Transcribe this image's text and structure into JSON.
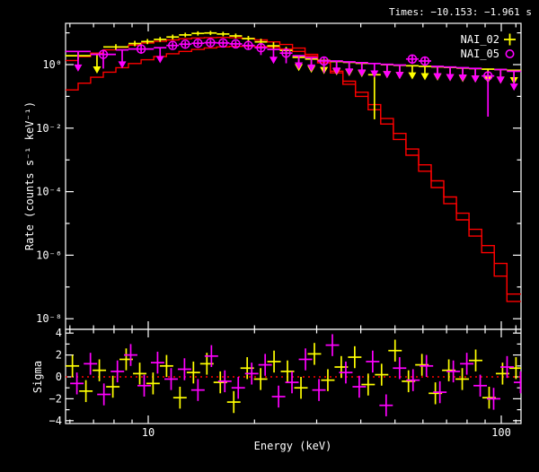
{
  "header": {
    "times": "Times: −10.153: −1.961 s"
  },
  "axis": {
    "xlabel": "Energy (keV)",
    "ylabel_main": "Rate (counts s⁻¹ keV⁻¹)",
    "ylabel_resid": "Sigma",
    "x_major_labels": [
      "10",
      "100"
    ],
    "y_major_labels_main": [
      "10⁰",
      "10⁻²",
      "10⁻⁴",
      "10⁻⁶",
      "10⁻⁸"
    ],
    "y_major_labels_resid": [
      "4",
      "2",
      "0",
      "−2",
      "−4"
    ]
  },
  "colors": {
    "background": "#000000",
    "frame": "#ffffff",
    "model": "#ff0000",
    "zero_line": "#ff0000",
    "nai02": "#ffff00",
    "nai05": "#ff00ff"
  },
  "chart_data": {
    "type": "scatter",
    "title": "Times: −10.153: −1.961 s",
    "xlabel": "Energy (keV)",
    "ylabel": "Rate (counts s⁻¹ keV⁻¹)",
    "ylabel_residuals": "Sigma",
    "x_scale": "log",
    "y_scale_main": "log",
    "x_range_kev": [
      5.83,
      113.8
    ],
    "y_range_main": [
      5e-09,
      20
    ],
    "y_range_residuals": [
      -4.3,
      4.35
    ],
    "x_major_ticks": [
      10,
      100
    ],
    "x_minor_ticks": [
      6,
      7,
      8,
      9,
      20,
      30,
      40,
      50,
      60,
      70,
      80,
      90,
      110
    ],
    "y_major_ticks_main": [
      1,
      0.01,
      0.0001,
      1e-06,
      1e-08
    ],
    "y_minor_ticks_main": [
      10,
      0.1,
      0.001,
      1e-05,
      1e-07
    ],
    "y_major_ticks_resid": [
      4,
      2,
      0,
      -2,
      -4
    ],
    "y_minor_ticks_resid": [
      3,
      1,
      -1,
      -3
    ],
    "legend_position": "top-right",
    "model_bin_edges_kev": [
      5.83,
      6.33,
      6.87,
      7.46,
      8.1,
      8.79,
      9.55,
      10.37,
      11.26,
      12.22,
      13.27,
      14.41,
      15.64,
      16.98,
      18.44,
      20.02,
      21.73,
      23.59,
      25.62,
      27.81,
      30.2,
      32.79,
      35.6,
      38.65,
      41.97,
      45.56,
      49.47,
      53.71,
      58.32,
      63.32,
      68.75,
      74.65,
      81.05,
      88.0,
      95.55,
      103.74,
      113.8
    ],
    "series": [
      {
        "name": "NAI_02",
        "color": "#ffff00",
        "marker": "plus",
        "model_rate": [
          1.35,
          1.8,
          2.3,
          2.9,
          3.5,
          4.1,
          4.8,
          5.4,
          6.0,
          6.5,
          6.9,
          7.1,
          7.2,
          7.0,
          6.6,
          6.0,
          5.2,
          4.3,
          3.3,
          2.1,
          1.15,
          0.55,
          0.24,
          0.1,
          0.038,
          0.0135,
          0.0044,
          0.0014,
          0.00044,
          0.000135,
          4.2e-05,
          1.3e-05,
          4e-06,
          1.2e-06,
          2.2e-07,
          3.5e-08
        ],
        "points": [
          {
            "e0": 5.83,
            "e1": 6.87,
            "r": 1.9,
            "lo": 1.45,
            "hi": 2.5
          },
          {
            "e0": 7.46,
            "e1": 8.79,
            "r": 3.6,
            "lo": 2.9,
            "hi": 4.4
          },
          {
            "e0": 8.79,
            "e1": 9.55,
            "r": 4.6,
            "lo": 3.8,
            "hi": 5.6
          },
          {
            "e0": 9.55,
            "e1": 10.37,
            "r": 5.3,
            "lo": 4.4,
            "hi": 6.4
          },
          {
            "e0": 10.37,
            "e1": 11.26,
            "r": 6.2,
            "lo": 5.2,
            "hi": 7.4
          },
          {
            "e0": 11.26,
            "e1": 12.22,
            "r": 7.4,
            "lo": 6.2,
            "hi": 8.8
          },
          {
            "e0": 12.22,
            "e1": 13.27,
            "r": 8.6,
            "lo": 7.3,
            "hi": 10.1
          },
          {
            "e0": 13.27,
            "e1": 14.41,
            "r": 9.6,
            "lo": 8.2,
            "hi": 11.2
          },
          {
            "e0": 14.41,
            "e1": 15.64,
            "r": 9.9,
            "lo": 8.5,
            "hi": 11.5
          },
          {
            "e0": 15.64,
            "e1": 16.98,
            "r": 9.2,
            "lo": 7.8,
            "hi": 10.8
          },
          {
            "e0": 16.98,
            "e1": 18.44,
            "r": 8.0,
            "lo": 6.7,
            "hi": 9.5
          },
          {
            "e0": 18.44,
            "e1": 20.02,
            "r": 6.6,
            "lo": 5.4,
            "hi": 8.0
          },
          {
            "e0": 20.02,
            "e1": 21.73,
            "r": 5.2,
            "lo": 4.1,
            "hi": 6.5
          },
          {
            "e0": 21.73,
            "e1": 23.59,
            "r": 3.9,
            "lo": 2.9,
            "hi": 5.1
          },
          {
            "e0": 23.59,
            "e1": 25.62,
            "r": 2.8,
            "lo": 1.55,
            "hi": 3.6
          },
          {
            "e0": 41.97,
            "e1": 45.56,
            "r": 0.48,
            "lo": 0.019,
            "hi": 0.62
          }
        ],
        "upper_limits": [
          {
            "e0": 6.87,
            "e1": 7.46,
            "top": 2.1,
            "tip": 0.52
          },
          {
            "e0": 25.62,
            "e1": 27.81,
            "top": 1.7,
            "tip": 0.62
          },
          {
            "e0": 27.81,
            "e1": 30.2,
            "top": 1.5,
            "tip": 0.55
          },
          {
            "e0": 30.2,
            "e1": 32.79,
            "top": 1.35,
            "tip": 0.5
          },
          {
            "e0": 32.79,
            "e1": 35.6,
            "top": 1.25,
            "tip": 0.46
          },
          {
            "e0": 35.6,
            "e1": 38.65,
            "top": 1.18,
            "tip": 0.43
          },
          {
            "e0": 38.65,
            "e1": 41.97,
            "top": 1.1,
            "tip": 0.4
          },
          {
            "e0": 45.56,
            "e1": 49.47,
            "top": 1.0,
            "tip": 0.37
          },
          {
            "e0": 49.47,
            "e1": 53.71,
            "top": 0.95,
            "tip": 0.35
          },
          {
            "e0": 53.71,
            "e1": 58.32,
            "top": 0.92,
            "tip": 0.34
          },
          {
            "e0": 58.32,
            "e1": 63.32,
            "top": 0.88,
            "tip": 0.32
          },
          {
            "e0": 63.32,
            "e1": 68.75,
            "top": 0.85,
            "tip": 0.31
          },
          {
            "e0": 68.75,
            "e1": 74.65,
            "top": 0.82,
            "tip": 0.3
          },
          {
            "e0": 74.65,
            "e1": 81.05,
            "top": 0.78,
            "tip": 0.28
          },
          {
            "e0": 81.05,
            "e1": 88.0,
            "top": 0.75,
            "tip": 0.27
          },
          {
            "e0": 88.0,
            "e1": 95.55,
            "top": 0.72,
            "tip": 0.26
          },
          {
            "e0": 95.55,
            "e1": 103.74,
            "top": 0.7,
            "tip": 0.25
          },
          {
            "e0": 103.74,
            "e1": 113.8,
            "top": 0.66,
            "tip": 0.24
          }
        ],
        "residuals": [
          [
            6.1,
            1.0
          ],
          [
            6.66,
            -1.3
          ],
          [
            7.27,
            0.6
          ],
          [
            7.94,
            -0.9
          ],
          [
            8.66,
            1.6
          ],
          [
            9.46,
            0.3
          ],
          [
            10.32,
            -0.6
          ],
          [
            11.27,
            1.0
          ],
          [
            12.3,
            -1.9
          ],
          [
            13.43,
            0.4
          ],
          [
            14.66,
            1.2
          ],
          [
            16.0,
            -0.5
          ],
          [
            17.47,
            -2.3
          ],
          [
            19.07,
            0.8
          ],
          [
            20.82,
            -0.2
          ],
          [
            22.72,
            1.4
          ],
          [
            24.8,
            0.5
          ],
          [
            27.08,
            -1.0
          ],
          [
            29.56,
            2.1
          ],
          [
            32.27,
            -0.3
          ],
          [
            35.22,
            0.9
          ],
          [
            38.45,
            1.8
          ],
          [
            41.97,
            -0.7
          ],
          [
            45.82,
            0.2
          ],
          [
            50.02,
            2.4
          ],
          [
            54.6,
            -0.4
          ],
          [
            59.6,
            1.1
          ],
          [
            65.06,
            -1.5
          ],
          [
            71.02,
            0.6
          ],
          [
            77.53,
            -0.2
          ],
          [
            84.63,
            1.5
          ],
          [
            92.38,
            -1.9
          ],
          [
            100.84,
            0.3
          ],
          [
            110.08,
            0.8
          ]
        ]
      },
      {
        "name": "NAI_05",
        "color": "#ff00ff",
        "marker": "circle",
        "model_rate": [
          0.16,
          0.26,
          0.4,
          0.58,
          0.8,
          1.08,
          1.42,
          1.8,
          2.2,
          2.6,
          3.0,
          3.35,
          3.6,
          3.75,
          3.8,
          3.7,
          3.5,
          3.1,
          2.6,
          1.85,
          1.15,
          0.62,
          0.3,
          0.135,
          0.055,
          0.02,
          0.0068,
          0.0022,
          0.0007,
          0.00022,
          6.8e-05,
          2.1e-05,
          6.5e-06,
          2e-06,
          5.5e-07,
          6e-08
        ],
        "points": [
          {
            "e0": 6.87,
            "e1": 8.1,
            "r": 2.1,
            "lo": 0.75,
            "hi": 2.8,
            "c": true
          },
          {
            "e0": 8.79,
            "e1": 10.37,
            "r": 3.1,
            "lo": 2.2,
            "hi": 4.2,
            "c": true
          },
          {
            "e0": 11.26,
            "e1": 12.22,
            "r": 4.0,
            "lo": 3.2,
            "hi": 5.0,
            "c": true
          },
          {
            "e0": 12.22,
            "e1": 13.27,
            "r": 4.4,
            "lo": 3.5,
            "hi": 5.4,
            "c": true
          },
          {
            "e0": 13.27,
            "e1": 14.41,
            "r": 4.7,
            "lo": 3.8,
            "hi": 5.8,
            "c": true
          },
          {
            "e0": 14.41,
            "e1": 15.64,
            "r": 4.9,
            "lo": 3.9,
            "hi": 6.0,
            "c": true
          },
          {
            "e0": 15.64,
            "e1": 16.98,
            "r": 4.8,
            "lo": 3.8,
            "hi": 5.9,
            "c": true
          },
          {
            "e0": 16.98,
            "e1": 18.44,
            "r": 4.5,
            "lo": 3.6,
            "hi": 5.6,
            "c": true
          },
          {
            "e0": 18.44,
            "e1": 20.02,
            "r": 4.0,
            "lo": 3.1,
            "hi": 5.0,
            "c": true
          },
          {
            "e0": 20.02,
            "e1": 21.73,
            "r": 3.4,
            "lo": 2.0,
            "hi": 4.3,
            "c": true
          },
          {
            "e0": 23.59,
            "e1": 25.62,
            "r": 2.3,
            "lo": 1.1,
            "hi": 3.0,
            "c": true
          },
          {
            "e0": 30.2,
            "e1": 32.79,
            "r": 1.3,
            "lo": 0.55,
            "hi": 1.75,
            "c": true
          },
          {
            "e0": 53.71,
            "e1": 58.32,
            "r": 1.5,
            "lo": 1.05,
            "hi": 2.0,
            "c": true
          },
          {
            "e0": 58.32,
            "e1": 63.32,
            "r": 1.3,
            "lo": 0.9,
            "hi": 1.75,
            "c": true
          },
          {
            "e0": 88.0,
            "e1": 95.55,
            "r": 0.44,
            "lo": 0.023,
            "hi": 0.58,
            "c": true
          }
        ],
        "upper_limits": [
          {
            "e0": 5.83,
            "e1": 6.87,
            "top": 2.6,
            "tip": 0.6
          },
          {
            "e0": 8.1,
            "e1": 8.79,
            "top": 2.9,
            "tip": 0.75
          },
          {
            "e0": 10.37,
            "e1": 11.26,
            "top": 3.4,
            "tip": 1.1
          },
          {
            "e0": 21.73,
            "e1": 23.59,
            "top": 3.0,
            "tip": 1.05
          },
          {
            "e0": 25.62,
            "e1": 27.81,
            "top": 1.9,
            "tip": 0.7
          },
          {
            "e0": 27.81,
            "e1": 30.2,
            "top": 1.65,
            "tip": 0.6
          },
          {
            "e0": 32.79,
            "e1": 35.6,
            "top": 1.3,
            "tip": 0.48
          },
          {
            "e0": 35.6,
            "e1": 38.65,
            "top": 1.22,
            "tip": 0.45
          },
          {
            "e0": 38.65,
            "e1": 41.97,
            "top": 1.15,
            "tip": 0.42
          },
          {
            "e0": 41.97,
            "e1": 45.56,
            "top": 1.08,
            "tip": 0.39
          },
          {
            "e0": 45.56,
            "e1": 49.47,
            "top": 1.02,
            "tip": 0.37
          },
          {
            "e0": 49.47,
            "e1": 53.71,
            "top": 0.97,
            "tip": 0.35
          },
          {
            "e0": 63.32,
            "e1": 68.75,
            "top": 0.88,
            "tip": 0.32
          },
          {
            "e0": 68.75,
            "e1": 74.65,
            "top": 0.84,
            "tip": 0.3
          },
          {
            "e0": 74.65,
            "e1": 81.05,
            "top": 0.8,
            "tip": 0.29
          },
          {
            "e0": 81.05,
            "e1": 88.0,
            "top": 0.76,
            "tip": 0.27
          },
          {
            "e0": 95.55,
            "e1": 103.74,
            "top": 0.7,
            "tip": 0.25
          },
          {
            "e0": 103.74,
            "e1": 113.8,
            "top": 0.62,
            "tip": 0.15
          }
        ],
        "residuals": [
          [
            6.28,
            -0.6
          ],
          [
            6.86,
            1.2
          ],
          [
            7.49,
            -1.6
          ],
          [
            8.18,
            0.5
          ],
          [
            8.92,
            2.0
          ],
          [
            9.74,
            -0.8
          ],
          [
            10.63,
            1.3
          ],
          [
            11.61,
            -0.2
          ],
          [
            12.67,
            0.7
          ],
          [
            13.83,
            -1.2
          ],
          [
            15.1,
            1.9
          ],
          [
            16.48,
            -0.4
          ],
          [
            17.99,
            -1.0
          ],
          [
            19.64,
            0.3
          ],
          [
            21.44,
            1.1
          ],
          [
            23.4,
            -1.8
          ],
          [
            25.54,
            -0.5
          ],
          [
            27.89,
            1.6
          ],
          [
            30.45,
            -1.2
          ],
          [
            33.24,
            2.9
          ],
          [
            36.28,
            0.4
          ],
          [
            39.6,
            -0.9
          ],
          [
            43.23,
            1.4
          ],
          [
            47.19,
            -2.6
          ],
          [
            51.52,
            0.8
          ],
          [
            56.24,
            -0.3
          ],
          [
            61.39,
            1.0
          ],
          [
            67.01,
            -1.4
          ],
          [
            73.15,
            0.5
          ],
          [
            79.86,
            1.2
          ],
          [
            87.17,
            -0.8
          ],
          [
            95.15,
            -2.0
          ],
          [
            103.87,
            0.9
          ],
          [
            113.38,
            -0.5
          ]
        ]
      }
    ]
  }
}
